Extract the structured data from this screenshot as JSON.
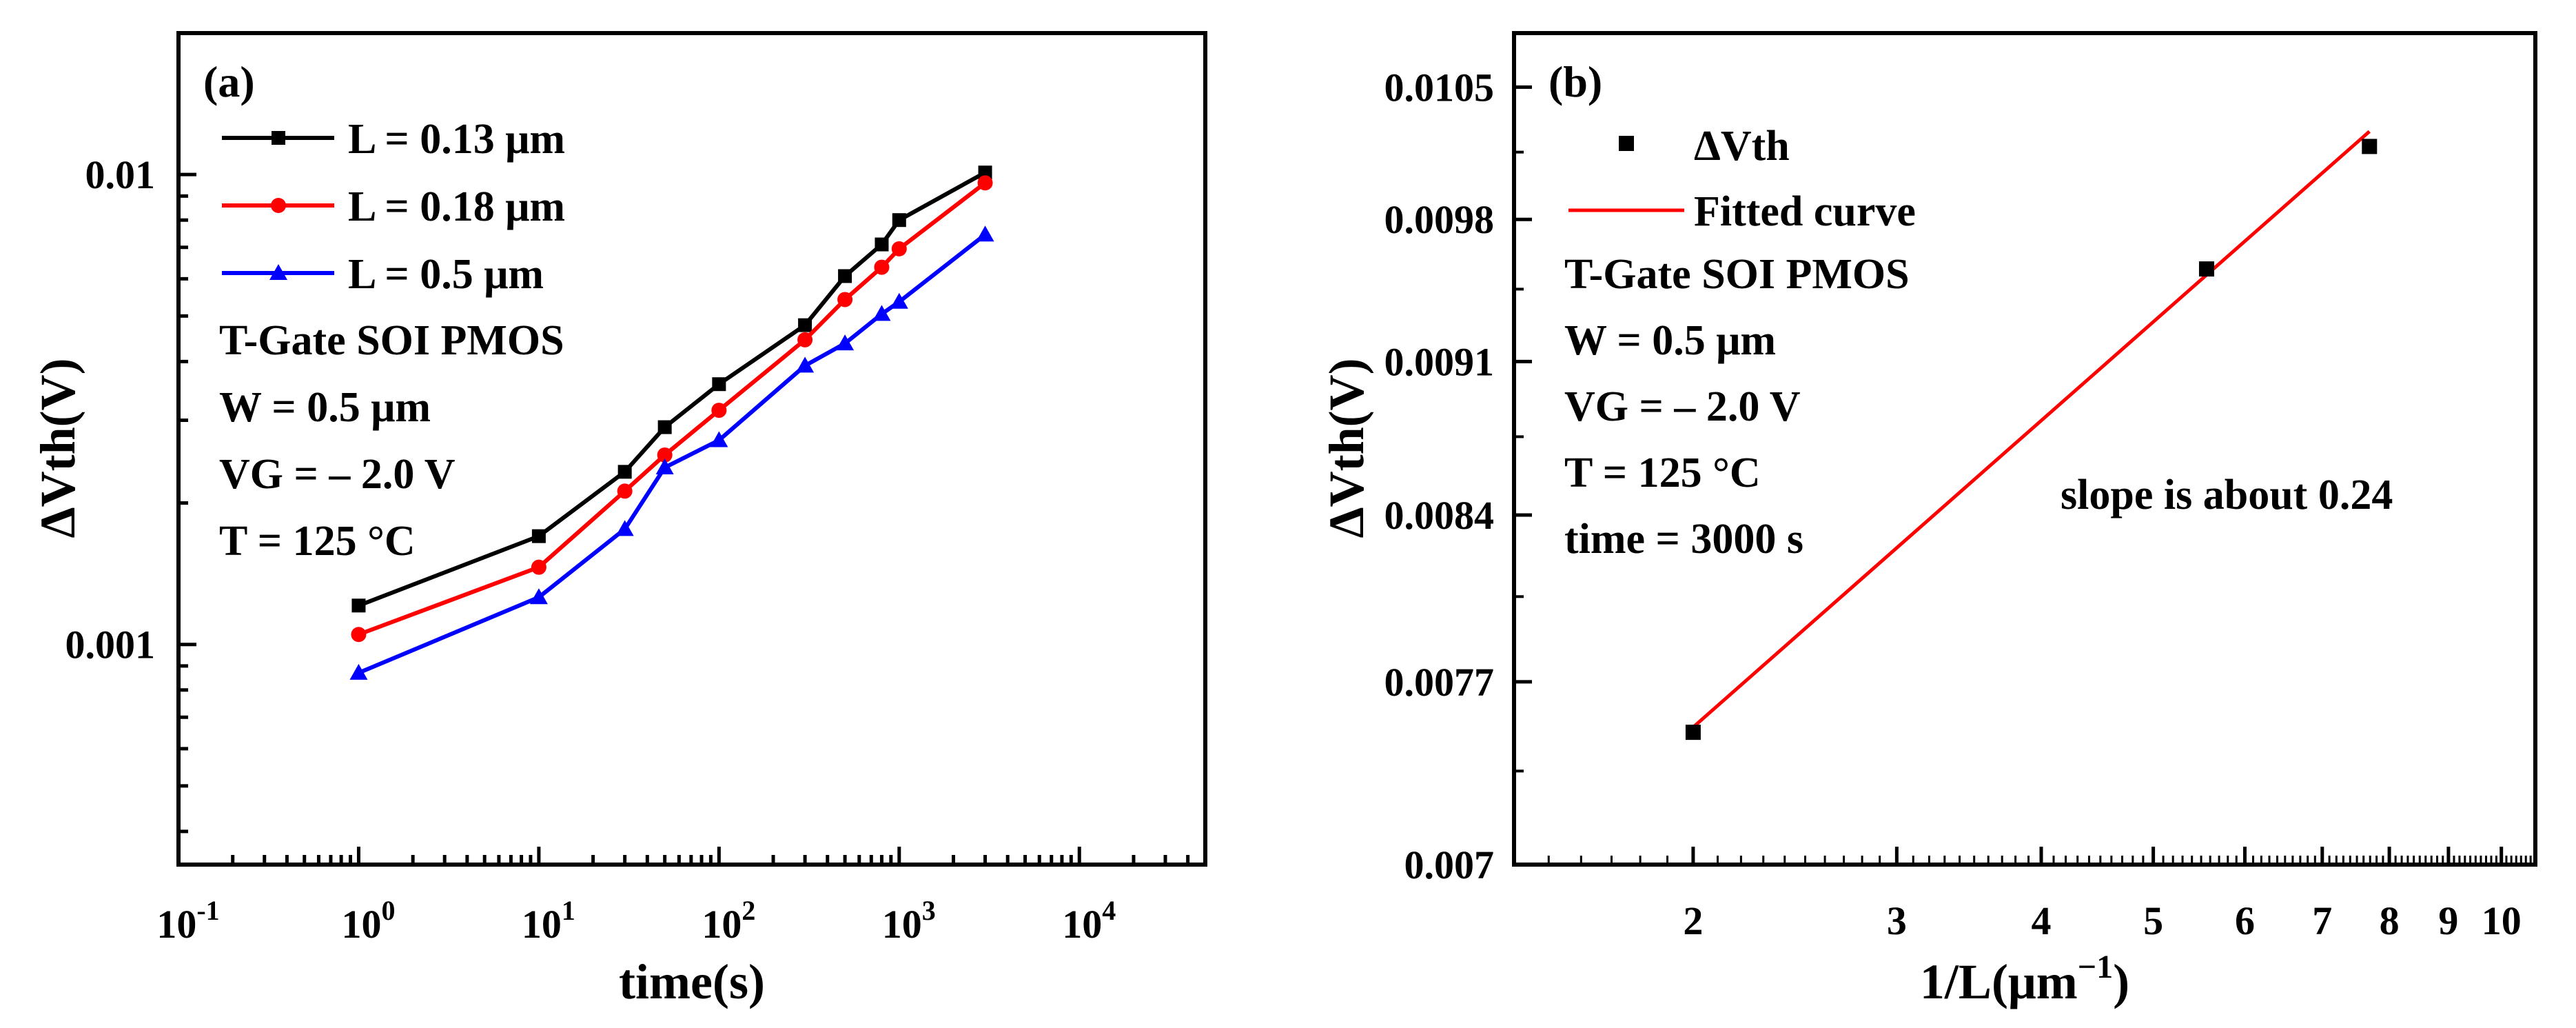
{
  "chart_data": [
    {
      "panel": "(a)",
      "type": "line",
      "xscale": "log",
      "yscale": "log",
      "xlabel": "time(s)",
      "ylabel": "ΔVth(V)",
      "xlim": [
        0.1,
        50000
      ],
      "ylim": [
        0.00034,
        0.02
      ],
      "xticks": [
        {
          "value": 0.1,
          "base": "10",
          "exp": "-1"
        },
        {
          "value": 1,
          "base": "10",
          "exp": "0"
        },
        {
          "value": 10,
          "base": "10",
          "exp": "1"
        },
        {
          "value": 100,
          "base": "10",
          "exp": "2"
        },
        {
          "value": 1000,
          "base": "10",
          "exp": "3"
        },
        {
          "value": 10000,
          "base": "10",
          "exp": "4"
        }
      ],
      "yticks": [
        {
          "value": 0.001,
          "label": "0.001"
        },
        {
          "value": 0.01,
          "label": "0.01"
        }
      ],
      "x": [
        1,
        10,
        30,
        50,
        100,
        300,
        500,
        800,
        1000,
        3000
      ],
      "series": [
        {
          "name": "L = 0.13 μm",
          "color": "#000000",
          "marker": "square",
          "values": [
            0.00121,
            0.0017,
            0.00233,
            0.0029,
            0.00358,
            0.00478,
            0.00608,
            0.0071,
            0.008,
            0.0101
          ]
        },
        {
          "name": "L = 0.18 μm",
          "color": "#ff0000",
          "marker": "circle",
          "values": [
            0.00105,
            0.00146,
            0.00212,
            0.00253,
            0.00315,
            0.00445,
            0.00542,
            0.00635,
            0.00695,
            0.0096
          ]
        },
        {
          "name": "L = 0.5 μm",
          "color": "#0000ff",
          "marker": "triangle",
          "values": [
            0.00087,
            0.00126,
            0.00176,
            0.00238,
            0.00272,
            0.00392,
            0.00437,
            0.00505,
            0.00536,
            0.00745
          ]
        }
      ],
      "annotations": [
        "T-Gate SOI PMOS",
        "W = 0.5 μm",
        "VG = – 2.0 V",
        "T = 125 °C"
      ],
      "legend_position": "top-left"
    },
    {
      "panel": "(b)",
      "type": "scatter",
      "xscale": "log",
      "yscale": "log",
      "xlabel": "1/L(μm",
      "xlabel_sup": "−1",
      "xlabel_close": ")",
      "ylabel": "ΔVth(V)",
      "xlim": [
        1.4,
        10.7
      ],
      "ylim": [
        0.007,
        0.0108
      ],
      "xticks": [
        {
          "value": 2,
          "label": "2"
        },
        {
          "value": 3,
          "label": "3"
        },
        {
          "value": 4,
          "label": "4"
        },
        {
          "value": 5,
          "label": "5"
        },
        {
          "value": 6,
          "label": "6"
        },
        {
          "value": 7,
          "label": "7"
        },
        {
          "value": 8,
          "label": "8"
        },
        {
          "value": 9,
          "label": "9"
        },
        {
          "value": 10,
          "label": "10"
        }
      ],
      "yticks": [
        {
          "value": 0.007,
          "label": "0.007"
        },
        {
          "value": 0.0077,
          "label": "0.0077"
        },
        {
          "value": 0.0084,
          "label": "0.0084"
        },
        {
          "value": 0.0091,
          "label": "0.0091"
        },
        {
          "value": 0.0098,
          "label": "0.0098"
        },
        {
          "value": 0.0105,
          "label": "0.0105"
        }
      ],
      "x": [
        2.0,
        5.56,
        7.69
      ],
      "y": [
        0.0075,
        0.00955,
        0.01018
      ],
      "fit": {
        "x": [
          2.0,
          7.69
        ],
        "y": [
          0.00752,
          0.01026
        ],
        "color": "#ff0000"
      },
      "legend": [
        "ΔVth",
        "Fitted curve"
      ],
      "annotations": [
        "T-Gate SOI PMOS",
        "W = 0.5 μm",
        "VG = – 2.0 V",
        "T = 125 °C",
        "time = 3000 s"
      ],
      "slope_text": "slope is about 0.24",
      "legend_position": "top-left"
    }
  ]
}
